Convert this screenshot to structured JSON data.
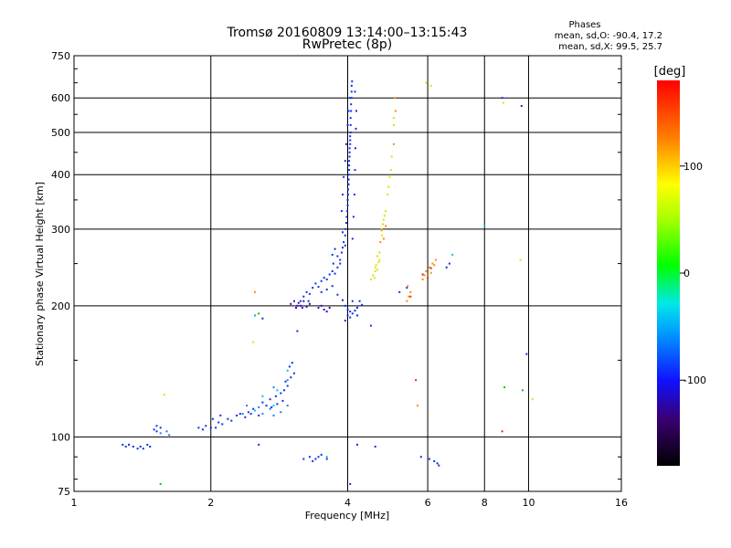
{
  "chart_data": {
    "type": "scatter",
    "title": "Tromsø 20160809 13:14:00–13:15:43",
    "subtitle": "RwPretec (8p)",
    "stats": {
      "heading": "Phases",
      "line_o": "mean, sd,O: -90.4, 17.2",
      "line_x": "mean, sd,X:  99.5, 25.7"
    },
    "xlabel": "Frequency [MHz]",
    "ylabel": "Stationary phase Virtual Height [km]",
    "x_scale": "log2",
    "y_scale": "log",
    "xlim": [
      1,
      16
    ],
    "ylim": [
      75,
      750
    ],
    "x_ticks": [
      1,
      2,
      4,
      6,
      8,
      10,
      16
    ],
    "x_tick_labels": [
      "1",
      "2",
      "4",
      "6",
      "8",
      "10",
      "16"
    ],
    "y_ticks": [
      75,
      100,
      200,
      300,
      400,
      500,
      600,
      750
    ],
    "y_tick_labels": [
      "75",
      "100",
      "200",
      "300",
      "400",
      "500",
      "600",
      "750"
    ],
    "grid": true,
    "colorbar": {
      "label": "[deg]",
      "range": [
        -180,
        180
      ],
      "ticks": [
        100,
        0,
        -100
      ],
      "tick_labels": [
        "100",
        "0",
        "-100"
      ]
    },
    "series": [
      {
        "phase": -110,
        "color": "#0a2df0",
        "points": [
          [
            1.28,
            96
          ],
          [
            1.3,
            95
          ],
          [
            1.32,
            96
          ],
          [
            1.35,
            95
          ],
          [
            1.38,
            94
          ],
          [
            1.4,
            95
          ],
          [
            1.42,
            94
          ],
          [
            1.45,
            96
          ],
          [
            1.47,
            95
          ],
          [
            1.5,
            104
          ],
          [
            1.52,
            103
          ],
          [
            1.55,
            105
          ],
          [
            1.52,
            106
          ],
          [
            1.88,
            105
          ],
          [
            1.92,
            104
          ],
          [
            1.95,
            106
          ],
          [
            2.0,
            105
          ],
          [
            2.05,
            105
          ],
          [
            2.02,
            110
          ],
          [
            2.08,
            108
          ],
          [
            2.12,
            107
          ],
          [
            2.18,
            110
          ],
          [
            2.22,
            109
          ],
          [
            2.1,
            112
          ],
          [
            2.28,
            112
          ],
          [
            2.32,
            113
          ],
          [
            2.38,
            111
          ],
          [
            2.42,
            114
          ],
          [
            2.48,
            116
          ],
          [
            2.45,
            113
          ],
          [
            2.55,
            112
          ],
          [
            2.6,
            120
          ],
          [
            2.65,
            118
          ],
          [
            2.7,
            122
          ],
          [
            2.72,
            117
          ],
          [
            2.78,
            124
          ],
          [
            2.8,
            119
          ],
          [
            2.85,
            126
          ],
          [
            2.9,
            128
          ],
          [
            2.95,
            131
          ],
          [
            2.88,
            121
          ],
          [
            2.92,
            134
          ],
          [
            3.0,
            137
          ],
          [
            3.05,
            140
          ],
          [
            2.98,
            145
          ],
          [
            3.02,
            148
          ],
          [
            3.1,
            175
          ],
          [
            2.5,
            190
          ],
          [
            2.6,
            187
          ],
          [
            3.15,
            205
          ],
          [
            3.2,
            210
          ],
          [
            3.25,
            215
          ],
          [
            3.3,
            213
          ],
          [
            3.28,
            205
          ],
          [
            3.35,
            220
          ],
          [
            3.4,
            225
          ],
          [
            3.45,
            221
          ],
          [
            3.5,
            228
          ],
          [
            3.55,
            232
          ],
          [
            3.6,
            230
          ],
          [
            3.65,
            236
          ],
          [
            3.7,
            240
          ],
          [
            3.75,
            237
          ],
          [
            3.8,
            245
          ],
          [
            3.85,
            250
          ],
          [
            3.5,
            215
          ],
          [
            3.6,
            218
          ],
          [
            3.7,
            222
          ],
          [
            3.8,
            212
          ],
          [
            3.9,
            206
          ],
          [
            3.95,
            200
          ],
          [
            4.0,
            196
          ],
          [
            4.05,
            194
          ],
          [
            4.1,
            192
          ],
          [
            4.15,
            195
          ],
          [
            4.2,
            198
          ],
          [
            4.25,
            205
          ],
          [
            4.3,
            201
          ],
          [
            4.2,
            190
          ],
          [
            4.0,
            190
          ],
          [
            3.95,
            185
          ],
          [
            4.05,
            188
          ],
          [
            4.1,
            205
          ],
          [
            3.88,
            265
          ],
          [
            3.9,
            272
          ],
          [
            3.92,
            280
          ],
          [
            3.95,
            290
          ],
          [
            3.96,
            300
          ],
          [
            3.97,
            310
          ],
          [
            3.98,
            320
          ],
          [
            3.99,
            330
          ],
          [
            4.0,
            340
          ],
          [
            4.0,
            350
          ],
          [
            4.01,
            360
          ],
          [
            4.01,
            370
          ],
          [
            4.02,
            380
          ],
          [
            4.02,
            390
          ],
          [
            4.02,
            400
          ],
          [
            4.03,
            410
          ],
          [
            4.03,
            420
          ],
          [
            4.03,
            430
          ],
          [
            4.04,
            440
          ],
          [
            4.04,
            450
          ],
          [
            4.04,
            460
          ],
          [
            4.05,
            470
          ],
          [
            4.05,
            480
          ],
          [
            4.05,
            490
          ],
          [
            4.06,
            500
          ],
          [
            4.06,
            520
          ],
          [
            4.06,
            540
          ],
          [
            4.07,
            560
          ],
          [
            4.07,
            580
          ],
          [
            4.08,
            600
          ],
          [
            4.08,
            620
          ],
          [
            4.08,
            640
          ],
          [
            4.09,
            655
          ],
          [
            3.95,
            275
          ],
          [
            3.9,
            295
          ],
          [
            3.88,
            330
          ],
          [
            3.9,
            360
          ],
          [
            3.92,
            395
          ],
          [
            3.95,
            430
          ],
          [
            3.97,
            470
          ],
          [
            4.0,
            520
          ],
          [
            4.02,
            560
          ],
          [
            4.05,
            600
          ],
          [
            4.1,
            285
          ],
          [
            4.12,
            320
          ],
          [
            4.14,
            360
          ],
          [
            4.15,
            410
          ],
          [
            4.16,
            460
          ],
          [
            4.17,
            510
          ],
          [
            4.18,
            560
          ],
          [
            4.15,
            620
          ],
          [
            3.8,
            260
          ],
          [
            3.85,
            255
          ],
          [
            3.75,
            270
          ],
          [
            3.7,
            262
          ],
          [
            3.72,
            250
          ],
          [
            3.3,
            90
          ],
          [
            3.35,
            88
          ],
          [
            3.4,
            89
          ],
          [
            3.45,
            90
          ],
          [
            3.5,
            91
          ],
          [
            3.6,
            89
          ],
          [
            3.2,
            89
          ],
          [
            5.8,
            90
          ],
          [
            6.05,
            89
          ],
          [
            6.2,
            88
          ],
          [
            6.3,
            87
          ],
          [
            6.35,
            86
          ],
          [
            4.6,
            95
          ],
          [
            2.55,
            96
          ],
          [
            4.05,
            78
          ],
          [
            4.2,
            96
          ],
          [
            4.5,
            180
          ],
          [
            5.2,
            215
          ],
          [
            5.4,
            220
          ],
          [
            6.6,
            245
          ],
          [
            6.7,
            250
          ],
          [
            8.75,
            600
          ],
          [
            9.65,
            575
          ],
          [
            9.9,
            155
          ]
        ]
      },
      {
        "phase": -130,
        "color": "#3e00c2",
        "points": [
          [
            3.05,
            205
          ],
          [
            3.1,
            200
          ],
          [
            3.08,
            198
          ],
          [
            3.12,
            203
          ],
          [
            3.15,
            200
          ],
          [
            3.18,
            198
          ],
          [
            3.2,
            205
          ],
          [
            3.0,
            202
          ],
          [
            3.25,
            199
          ],
          [
            3.3,
            202
          ],
          [
            3.55,
            196
          ],
          [
            3.6,
            194
          ],
          [
            3.65,
            198
          ],
          [
            3.45,
            198
          ],
          [
            3.5,
            200
          ]
        ]
      },
      {
        "phase": -95,
        "color": "#1e78ff",
        "points": [
          [
            2.35,
            113
          ],
          [
            2.4,
            118
          ],
          [
            2.55,
            117
          ],
          [
            2.6,
            113
          ],
          [
            2.7,
            116
          ],
          [
            2.75,
            112
          ],
          [
            2.85,
            114
          ],
          [
            2.95,
            118
          ],
          [
            2.75,
            130
          ],
          [
            2.95,
            135
          ],
          [
            1.55,
            102
          ],
          [
            1.6,
            103
          ],
          [
            1.62,
            101
          ]
        ]
      },
      {
        "phase": -70,
        "color": "#00c8d8",
        "points": [
          [
            2.5,
            115
          ],
          [
            2.6,
            124
          ],
          [
            2.75,
            118
          ],
          [
            2.8,
            128
          ],
          [
            2.95,
            142
          ],
          [
            8.0,
            305
          ],
          [
            6.8,
            262
          ],
          [
            2.5,
            190
          ],
          [
            3.6,
            90
          ]
        ]
      },
      {
        "phase": 10,
        "color": "#10c010",
        "points": [
          [
            1.55,
            78
          ],
          [
            2.55,
            192
          ],
          [
            8.85,
            130
          ],
          [
            9.7,
            128
          ]
        ]
      },
      {
        "phase": 95,
        "color": "#e0e000",
        "points": [
          [
            4.55,
            235
          ],
          [
            4.6,
            240
          ],
          [
            4.65,
            242
          ],
          [
            4.62,
            248
          ],
          [
            4.68,
            252
          ],
          [
            4.6,
            245
          ],
          [
            4.7,
            255
          ],
          [
            4.58,
            232
          ],
          [
            4.65,
            260
          ],
          [
            4.7,
            265
          ],
          [
            4.75,
            300
          ],
          [
            4.78,
            308
          ],
          [
            4.8,
            315
          ],
          [
            4.82,
            322
          ],
          [
            4.76,
            290
          ],
          [
            4.85,
            330
          ],
          [
            4.9,
            360
          ],
          [
            4.92,
            375
          ],
          [
            4.95,
            395
          ],
          [
            4.98,
            410
          ],
          [
            5.0,
            440
          ],
          [
            5.05,
            520
          ],
          [
            5.05,
            540
          ],
          [
            4.5,
            230
          ],
          [
            6.1,
            640
          ],
          [
            5.95,
            650
          ],
          [
            1.58,
            125
          ],
          [
            2.48,
            165
          ],
          [
            9.6,
            255
          ],
          [
            10.2,
            122
          ],
          [
            8.8,
            585
          ]
        ]
      },
      {
        "phase": 130,
        "color": "#ff8c00",
        "points": [
          [
            4.72,
            280
          ],
          [
            4.8,
            285
          ],
          [
            4.75,
            298
          ],
          [
            4.85,
            305
          ],
          [
            5.05,
            470
          ],
          [
            5.1,
            560
          ],
          [
            5.08,
            600
          ],
          [
            5.4,
            205
          ],
          [
            5.45,
            210
          ],
          [
            5.5,
            215
          ],
          [
            5.42,
            222
          ],
          [
            5.85,
            230
          ],
          [
            5.9,
            235
          ],
          [
            5.95,
            240
          ],
          [
            6.05,
            245
          ],
          [
            6.1,
            238
          ],
          [
            6.15,
            250
          ],
          [
            6.2,
            248
          ],
          [
            6.25,
            255
          ],
          [
            6.0,
            233
          ],
          [
            2.5,
            215
          ],
          [
            5.7,
            118
          ]
        ]
      },
      {
        "phase": 160,
        "color": "#e82800",
        "points": [
          [
            5.5,
            210
          ],
          [
            6.0,
            232
          ],
          [
            6.1,
            244
          ],
          [
            5.85,
            236
          ],
          [
            5.65,
            135
          ],
          [
            8.75,
            103
          ]
        ]
      }
    ]
  }
}
